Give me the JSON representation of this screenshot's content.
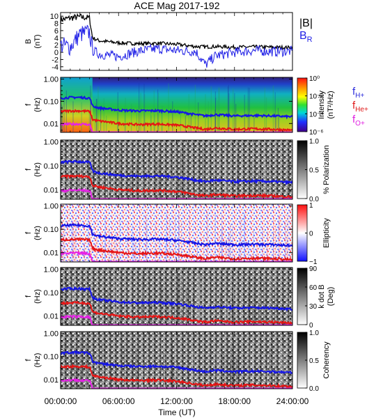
{
  "title": "ACE Mag 2017-192",
  "time_axis": {
    "label": "Time (UT)",
    "ticks": [
      "00:00:00",
      "06:00:00",
      "12:00:00",
      "18:00:00",
      "24:00:00"
    ]
  },
  "legend_b": {
    "b_total": "|B|",
    "b_r": "B",
    "b_r_sub": "R"
  },
  "legend_f": [
    {
      "main": "f",
      "sub": "H+",
      "color": "#2b2bdc"
    },
    {
      "main": "f",
      "sub": "He+",
      "color": "#e01818"
    },
    {
      "main": "f",
      "sub": "O+",
      "color": "#e020e0"
    }
  ],
  "colors": {
    "b_total": "#000000",
    "b_r": "#1f1fe6",
    "f_h": "#1414e6",
    "f_he": "#e61414",
    "f_o": "#e620e6"
  },
  "chart_data": [
    {
      "type": "line",
      "panel": "magnetic_field",
      "ylabel": "B",
      "yunit": "(nT)",
      "yticks": [
        "10",
        "8",
        "6",
        "4",
        "2",
        "0",
        "-2",
        "-4"
      ],
      "ylim": [
        -5,
        11
      ],
      "x": [
        0,
        1,
        2,
        3,
        3.3,
        4,
        6,
        8,
        10,
        12,
        14,
        15,
        16,
        18,
        20,
        22,
        24
      ],
      "series": [
        {
          "name": "|B|",
          "values": [
            9,
            9.5,
            9.8,
            9.5,
            4.0,
            3.2,
            2.6,
            2.4,
            2.5,
            2.2,
            1.6,
            1.5,
            1.6,
            1.4,
            1.5,
            1.4,
            1.3
          ]
        },
        {
          "name": "B_R",
          "values": [
            2,
            1.5,
            5,
            5.5,
            0.5,
            -0.5,
            -1.2,
            0.3,
            1.0,
            0.5,
            0.2,
            -3.5,
            -1,
            0,
            0.5,
            0.2,
            0.3
          ]
        }
      ]
    },
    {
      "type": "heatmap",
      "panel": "intensity",
      "ylabel": "f",
      "yunit": "(Hz)",
      "yticks": [
        "1.00",
        "0.10",
        "0.01"
      ],
      "ylim": [
        0.004,
        1.2
      ],
      "yscale": "log",
      "colorbar": {
        "label": "Intensity",
        "unit": "(nT²/Hz)",
        "ticks": [
          "10⁰",
          "10⁻²",
          "10⁻⁴",
          "10⁻⁶"
        ],
        "colormap": "rainbow"
      }
    },
    {
      "type": "heatmap",
      "panel": "polarization",
      "ylabel": "f",
      "yunit": "(Hz)",
      "yticks": [
        "1.00",
        "0.10",
        "0.01"
      ],
      "ylim": [
        0.004,
        1.2
      ],
      "colorbar": {
        "label": "% Polarization",
        "ticks": [
          "1.0",
          "0.5",
          "0.0"
        ],
        "colormap": "gray"
      }
    },
    {
      "type": "heatmap",
      "panel": "ellipticity",
      "ylabel": "f",
      "yunit": "(Hz)",
      "yticks": [
        "1.00",
        "0.10",
        "0.01"
      ],
      "ylim": [
        0.004,
        1.2
      ],
      "colorbar": {
        "label": "Ellipticity",
        "ticks": [
          "1",
          "0",
          "−1"
        ],
        "colormap": "red-white-blue"
      }
    },
    {
      "type": "heatmap",
      "panel": "k_dot_b",
      "ylabel": "f",
      "yunit": "(Hz)",
      "yticks": [
        "1.00",
        "0.10",
        "0.01"
      ],
      "ylim": [
        0.004,
        1.2
      ],
      "colorbar": {
        "label": "k dot B",
        "unit": "(Deg)",
        "ticks": [
          "90",
          "60",
          "30",
          "0"
        ],
        "colormap": "gray"
      }
    },
    {
      "type": "heatmap",
      "panel": "coherency",
      "ylabel": "f",
      "yunit": "(Hz)",
      "yticks": [
        "1.00",
        "0.10",
        "0.01"
      ],
      "ylim": [
        0.004,
        1.2
      ],
      "colorbar": {
        "label": "Coherency",
        "ticks": [
          "1.0",
          "0.5",
          "0.0"
        ],
        "colormap": "gray"
      }
    }
  ],
  "gyrofrequency_lines": {
    "x": [
      0,
      1,
      2,
      3,
      3.3,
      4,
      6,
      8,
      10,
      12,
      14,
      15,
      16,
      18,
      20,
      22,
      24
    ],
    "f_h": [
      0.14,
      0.15,
      0.15,
      0.14,
      0.06,
      0.05,
      0.04,
      0.037,
      0.038,
      0.034,
      0.025,
      0.022,
      0.025,
      0.022,
      0.023,
      0.022,
      0.02
    ],
    "f_he": [
      0.035,
      0.037,
      0.037,
      0.035,
      0.015,
      0.013,
      0.01,
      0.009,
      0.0095,
      0.0085,
      0.0063,
      0.0055,
      0.0063,
      0.0055,
      0.0058,
      0.0055,
      0.005
    ],
    "f_o": [
      0.009,
      0.0095,
      0.0095,
      0.009,
      0.0038,
      0.0033,
      0.0026,
      0.0024,
      0.0024,
      0.0021,
      0.0016,
      0.0014,
      0.0016,
      0.0014,
      0.0015,
      0.0014,
      0.0013
    ]
  }
}
